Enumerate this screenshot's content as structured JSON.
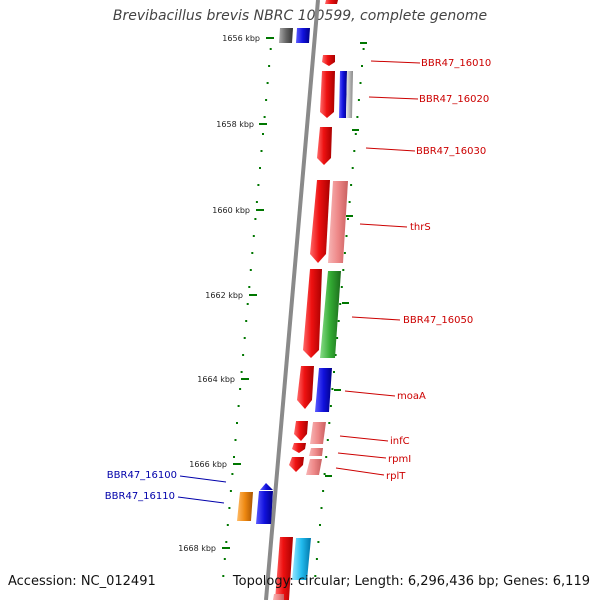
{
  "title": "Brevibacillus brevis NBRC 100599, complete genome",
  "footer": {
    "accession": "Accession: NC_012491",
    "topology": "Topology: circular; Length: 6,296,436 bp; Genes: 6,119"
  },
  "scale_ticks": [
    {
      "kbp": 1656,
      "label": "1656 kbp"
    },
    {
      "kbp": 1658,
      "label": "1658 kbp"
    },
    {
      "kbp": 1660,
      "label": "1660 kbp"
    },
    {
      "kbp": 1662,
      "label": "1662 kbp"
    },
    {
      "kbp": 1664,
      "label": "1664 kbp"
    },
    {
      "kbp": 1666,
      "label": "1666 kbp"
    },
    {
      "kbp": 1668,
      "label": "1668 kbp"
    }
  ],
  "gene_labels": [
    {
      "id": "BBR47_16010",
      "text": "BBR47_16010",
      "strand": "forward"
    },
    {
      "id": "BBR47_16020",
      "text": "BBR47_16020",
      "strand": "forward"
    },
    {
      "id": "BBR47_16030",
      "text": "BBR47_16030",
      "strand": "forward"
    },
    {
      "id": "thrS",
      "text": "thrS",
      "strand": "forward"
    },
    {
      "id": "BBR47_16050",
      "text": "BBR47_16050",
      "strand": "forward"
    },
    {
      "id": "moaA",
      "text": "moaA",
      "strand": "forward"
    },
    {
      "id": "infC",
      "text": "infC",
      "strand": "forward"
    },
    {
      "id": "rpmI",
      "text": "rpmI",
      "strand": "forward"
    },
    {
      "id": "rplT",
      "text": "rplT",
      "strand": "forward"
    },
    {
      "id": "BBR47_16100",
      "text": "BBR47_16100",
      "strand": "reverse"
    },
    {
      "id": "BBR47_16110",
      "text": "BBR47_16110",
      "strand": "reverse"
    }
  ],
  "colors": {
    "backbone": "#8a8a8a",
    "forward_label": "#cc0000",
    "reverse_label": "#0000aa",
    "tick": "#007700",
    "gene_red": "#ee1111",
    "gene_pink": "#ee8888",
    "gene_blue": "#1111dd",
    "gene_green": "#33aa33",
    "gene_gray": "#bbbbbb",
    "gene_dark_gray": "#666666",
    "gene_orange": "#ee8811",
    "gene_cyan": "#22bbee"
  }
}
